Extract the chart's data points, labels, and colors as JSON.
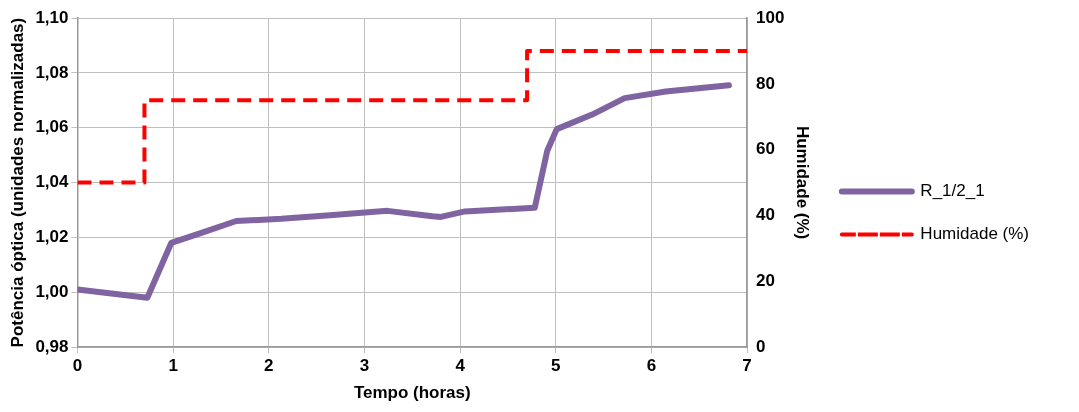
{
  "chart_data": {
    "type": "line",
    "xlabel": "Tempo (horas)",
    "ylabel": "Potência óptica (unidades normalizadas)",
    "y2label": "Humidade (%)",
    "xlim": [
      0,
      7
    ],
    "xticks": [
      0,
      1,
      2,
      3,
      4,
      5,
      6,
      7
    ],
    "ylim": [
      0.98,
      1.1
    ],
    "yticks": [
      {
        "value": 0.98,
        "label": "0,98"
      },
      {
        "value": 1.0,
        "label": "1,00"
      },
      {
        "value": 1.02,
        "label": "1,02"
      },
      {
        "value": 1.04,
        "label": "1,04"
      },
      {
        "value": 1.06,
        "label": "1,06"
      },
      {
        "value": 1.08,
        "label": "1,08"
      },
      {
        "value": 1.1,
        "label": "1,10"
      }
    ],
    "y2lim": [
      0,
      100
    ],
    "y2ticks": [
      0,
      20,
      40,
      60,
      80,
      100
    ],
    "grid": true,
    "legend": "right",
    "marker": "none",
    "series": [
      {
        "name": "R_1/2_1",
        "color": "#8064a2",
        "x": [
          0,
          0.73,
          0.98,
          1.28,
          1.66,
          2.13,
          2.64,
          3.24,
          3.71,
          3.8,
          4.05,
          4.78,
          4.91,
          5.01,
          5.38,
          5.72,
          6.15,
          6.81
        ],
        "values": [
          1.001,
          0.998,
          1.018,
          1.0215,
          1.026,
          1.0268,
          1.0281,
          1.0297,
          1.0277,
          1.0275,
          1.0295,
          1.0308,
          1.0515,
          1.0595,
          1.0648,
          1.0708,
          1.0732,
          1.0755
        ]
      },
      {
        "name": "Humidade (%)",
        "type": "step",
        "axis": "y2",
        "color": "#ff0000",
        "line_style": "dashed",
        "x": [
          0,
          0.7,
          4.7,
          7
        ],
        "values": [
          50,
          75,
          90,
          90
        ]
      }
    ]
  }
}
